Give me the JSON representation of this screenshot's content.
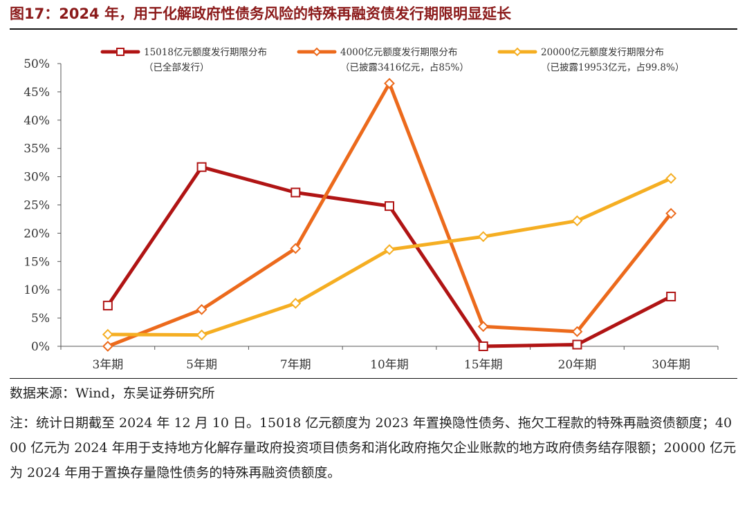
{
  "figure": {
    "title": "图17：2024 年，用于化解政府性债务风险的特殊再融资债发行期限明显延长",
    "source": "数据来源：Wind，东吴证券研究所",
    "note": "注：统计日期截至 2024 年 12 月 10 日。15018 亿元额度为 2023 年置换隐性债务、拖欠工程款的特殊再融资债额度；4000 亿元为 2024 年用于支持地方化解存量政府投资项目债务和消化政府拖欠企业账款的地方政府债务结存限额；20000 亿元为 2024 年用于置换存量隐性债务的特殊再融资债额度。"
  },
  "chart_data": {
    "type": "line",
    "categories": [
      "3年期",
      "5年期",
      "7年期",
      "10年期",
      "15年期",
      "20年期",
      "30年期"
    ],
    "y_ticks": [
      "0%",
      "5%",
      "10%",
      "15%",
      "20%",
      "25%",
      "30%",
      "35%",
      "40%",
      "45%",
      "50%"
    ],
    "ylim": [
      0,
      50
    ],
    "grid": false,
    "legend_position": "top",
    "series": [
      {
        "name": "15018亿元额度发行期限分布",
        "subtitle": "（已全部发行）",
        "color": "#b01414",
        "marker": "square",
        "values": [
          7.2,
          31.7,
          27.2,
          24.8,
          0.0,
          0.3,
          8.8
        ]
      },
      {
        "name": "4000亿元额度发行期限分布",
        "subtitle": "（已披露3416亿元，占85%）",
        "color": "#ec6a1c",
        "marker": "diamond",
        "values": [
          0.0,
          6.5,
          17.3,
          46.5,
          3.5,
          2.6,
          23.5
        ]
      },
      {
        "name": "20000亿元额度发行期限分布",
        "subtitle": "（已披露19953亿元，占99.8%）",
        "color": "#f5ae22",
        "marker": "diamond",
        "values": [
          2.1,
          2.0,
          7.6,
          17.1,
          19.4,
          22.2,
          29.7
        ]
      }
    ]
  }
}
